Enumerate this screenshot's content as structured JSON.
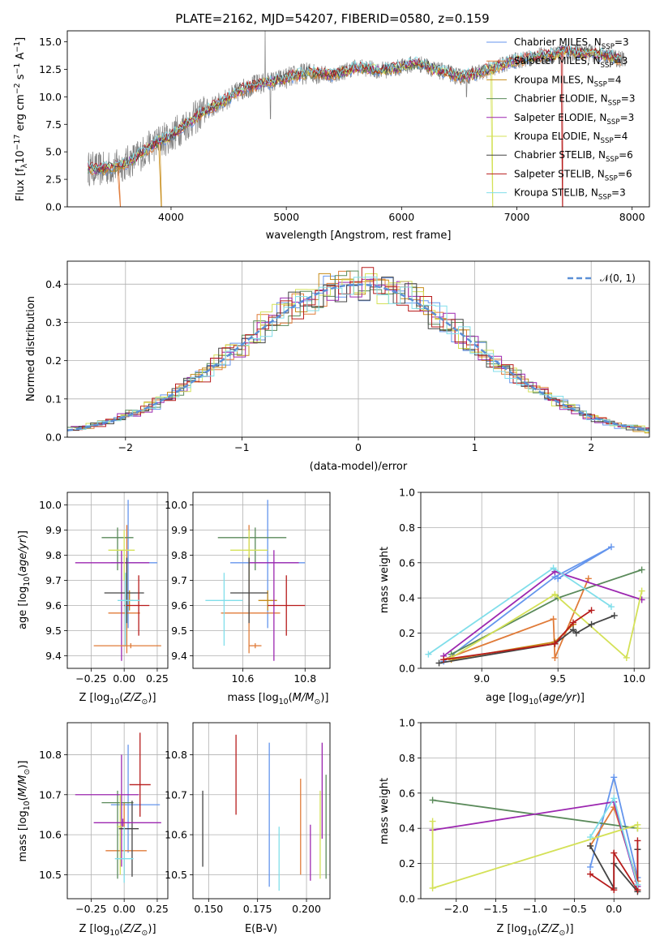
{
  "figure_title": "PLATE=2162, MJD=54207, FIBERID=0580, z=0.159",
  "colors": {
    "Chabrier MILES": "#6495ed",
    "Salpeter MILES": "#e07b39",
    "Kroupa MILES": "#c88d1a",
    "Chabrier ELODIE": "#5a8a5a",
    "Salpeter ELODIE": "#9c27b0",
    "Kroupa ELODIE": "#d4e157",
    "Chabrier STELIB": "#444444",
    "Salpeter STELIB": "#b71c1c",
    "Kroupa STELIB": "#80deea",
    "normal": "#5b8fd6",
    "observed": "#808080"
  },
  "chart_data": [
    {
      "id": "spectrum",
      "type": "line",
      "title": "PLATE=2162, MJD=54207, FIBERID=0580, z=0.159",
      "xlabel": "wavelength [Angstrom, rest frame]",
      "ylabel": "Flux [f_λ10^-17 erg cm^-2 s^-1 A^-1]",
      "xlim": [
        3100,
        8150
      ],
      "ylim": [
        0,
        16
      ],
      "xticks": [
        4000,
        5000,
        6000,
        7000,
        8000
      ],
      "yticks": [
        0.0,
        2.5,
        5.0,
        7.5,
        10.0,
        12.5,
        15.0
      ],
      "continuum": {
        "x": [
          3280,
          3400,
          3500,
          3600,
          3700,
          3800,
          3900,
          4000,
          4100,
          4200,
          4300,
          4400,
          4500,
          4600,
          4700,
          4800,
          4900,
          5000,
          5100,
          5200,
          5300,
          5400,
          5500,
          5600,
          5700,
          5800,
          5900,
          6000,
          6100,
          6200,
          6300,
          6400,
          6500,
          6600,
          6700,
          6800,
          6900,
          7000,
          7100,
          7200,
          7300,
          7400,
          7500,
          7600,
          7700,
          7800,
          7900
        ],
        "y": [
          3.5,
          3.4,
          3.6,
          3.9,
          4.5,
          5.3,
          6.0,
          6.4,
          7.3,
          8.0,
          8.8,
          9.3,
          9.9,
          10.6,
          11.0,
          11.2,
          11.4,
          11.7,
          12.0,
          12.2,
          12.1,
          12.0,
          12.3,
          12.7,
          12.6,
          12.4,
          12.5,
          12.7,
          13.0,
          12.9,
          12.4,
          12.2,
          11.8,
          12.0,
          12.3,
          12.6,
          13.0,
          13.3,
          13.5,
          13.7,
          13.8,
          14.2,
          14.0,
          14.0,
          13.9,
          13.7,
          13.4
        ]
      },
      "legend": [
        "Chabrier MILES, N_SSP=3",
        "Salpeter MILES, N_SSP=3",
        "Kroupa MILES, N_SSP=4",
        "Chabrier ELODIE, N_SSP=3",
        "Salpeter ELODIE, N_SSP=3",
        "Kroupa ELODIE, N_SSP=4",
        "Chabrier STELIB, N_SSP=6",
        "Salpeter STELIB, N_SSP=6",
        "Kroupa STELIB, N_SSP=3"
      ]
    },
    {
      "id": "residuals",
      "type": "histogram",
      "xlabel": "(data-model)/error",
      "ylabel": "Normed distribution",
      "xlim": [
        -2.5,
        2.5
      ],
      "ylim": [
        0,
        0.46
      ],
      "xticks": [
        -2,
        -1,
        0,
        1,
        2
      ],
      "yticks": [
        0.0,
        0.1,
        0.2,
        0.3,
        0.4
      ],
      "legend": [
        "𝒩(0, 1)"
      ],
      "bin_width": 0.1
    },
    {
      "id": "age_vs_Z",
      "type": "errorbar",
      "xlabel": "Z [log10(Z/Z⊙)]",
      "ylabel": "age  [log10(age/yr)]",
      "xlim": [
        -0.43,
        0.33
      ],
      "ylim": [
        9.35,
        10.05
      ],
      "xticks": [
        -0.25,
        0.0,
        0.25
      ],
      "xticklabels": [
        "−0.25",
        "0.00",
        "0.25"
      ],
      "yticks": [
        9.4,
        9.5,
        9.6,
        9.7,
        9.8,
        9.9,
        10.0
      ],
      "points": [
        {
          "series": "Chabrier MILES",
          "x": 0.03,
          "y": 9.77,
          "xerr": [
            0.13,
            0.22
          ],
          "yerr": [
            0.26,
            0.25
          ]
        },
        {
          "series": "Salpeter MILES",
          "x": 0.02,
          "y": 9.57,
          "xerr": [
            0.14,
            0.1
          ],
          "yerr": [
            0.16,
            0.35
          ]
        },
        {
          "series": "Kroupa MILES",
          "x": 0.04,
          "y": 9.62,
          "xerr": [
            0.03,
            0.03
          ],
          "yerr": [
            0.04,
            0.04
          ]
        },
        {
          "series": "Chabrier ELODIE",
          "x": -0.05,
          "y": 9.87,
          "xerr": [
            0.12,
            0.12
          ],
          "yerr": [
            0.13,
            0.04
          ]
        },
        {
          "series": "Salpeter ELODIE",
          "x": -0.02,
          "y": 9.77,
          "xerr": [
            0.35,
            0.21
          ],
          "yerr": [
            0.39,
            0.05
          ]
        },
        {
          "series": "Kroupa ELODIE",
          "x": 0.0,
          "y": 9.82,
          "xerr": [
            0.12,
            0.08
          ],
          "yerr": [
            0.12,
            0.08
          ]
        },
        {
          "series": "Chabrier STELIB",
          "x": 0.02,
          "y": 9.65,
          "xerr": [
            0.17,
            0.13
          ],
          "yerr": [
            0.12,
            0.14
          ]
        },
        {
          "series": "Salpeter STELIB",
          "x": 0.11,
          "y": 9.6,
          "xerr": [
            0.11,
            0.08
          ],
          "yerr": [
            0.12,
            0.12
          ]
        },
        {
          "series": "Kroupa STELIB",
          "x": 0.01,
          "y": 9.62,
          "xerr": [
            0.06,
            0.11
          ],
          "yerr": [
            0.18,
            0.11
          ]
        },
        {
          "series": "Salpeter MILES",
          "x": 0.05,
          "y": 9.44,
          "xerr": [
            0.28,
            0.23
          ],
          "yerr": [
            0.01,
            0.01
          ]
        }
      ]
    },
    {
      "id": "age_vs_mass",
      "type": "errorbar",
      "xlabel": "mass [log10(M/M⊙)]",
      "xlim": [
        10.44,
        10.88
      ],
      "ylim": [
        9.35,
        10.05
      ],
      "xticks": [
        10.6,
        10.8
      ],
      "yticks": [
        9.4,
        9.5,
        9.6,
        9.7,
        9.8,
        9.9,
        10.0
      ],
      "points": [
        {
          "series": "Chabrier MILES",
          "x": 10.68,
          "y": 9.77,
          "xerr": [
            0.12,
            0.12
          ],
          "yerr": [
            0.26,
            0.25
          ]
        },
        {
          "series": "Salpeter MILES",
          "x": 10.62,
          "y": 9.57,
          "xerr": [
            0.09,
            0.1
          ],
          "yerr": [
            0.16,
            0.35
          ]
        },
        {
          "series": "Kroupa MILES",
          "x": 10.68,
          "y": 9.62,
          "xerr": [
            0.03,
            0.03
          ],
          "yerr": [
            0.04,
            0.04
          ]
        },
        {
          "series": "Chabrier ELODIE",
          "x": 10.64,
          "y": 9.87,
          "xerr": [
            0.12,
            0.1
          ],
          "yerr": [
            0.13,
            0.04
          ]
        },
        {
          "series": "Salpeter ELODIE",
          "x": 10.7,
          "y": 9.77,
          "xerr": [
            0.08,
            0.08
          ],
          "yerr": [
            0.39,
            0.05
          ]
        },
        {
          "series": "Kroupa ELODIE",
          "x": 10.62,
          "y": 9.82,
          "xerr": [
            0.06,
            0.06
          ],
          "yerr": [
            0.12,
            0.08
          ]
        },
        {
          "series": "Chabrier STELIB",
          "x": 10.62,
          "y": 9.65,
          "xerr": [
            0.06,
            0.06
          ],
          "yerr": [
            0.12,
            0.14
          ]
        },
        {
          "series": "Salpeter STELIB",
          "x": 10.74,
          "y": 9.6,
          "xerr": [
            0.06,
            0.06
          ],
          "yerr": [
            0.12,
            0.12
          ]
        },
        {
          "series": "Kroupa STELIB",
          "x": 10.54,
          "y": 9.62,
          "xerr": [
            0.06,
            0.06
          ],
          "yerr": [
            0.18,
            0.11
          ]
        },
        {
          "series": "Salpeter MILES",
          "x": 10.64,
          "y": 9.44,
          "xerr": [
            0.02,
            0.02
          ],
          "yerr": [
            0.01,
            0.01
          ]
        }
      ]
    },
    {
      "id": "weight_vs_age",
      "type": "line",
      "xlabel": "age  [log10(age/yr)]",
      "ylabel": "mass weight",
      "xlim": [
        8.6,
        10.1
      ],
      "ylim": [
        0,
        1.0
      ],
      "xticks": [
        9.0,
        9.5,
        10.0
      ],
      "yticks": [
        0.0,
        0.2,
        0.4,
        0.6,
        0.8,
        1.0
      ],
      "series": [
        {
          "name": "Chabrier MILES",
          "x": [
            8.75,
            9.48,
            9.85,
            9.5
          ],
          "y": [
            0.04,
            0.52,
            0.69,
            0.51
          ]
        },
        {
          "name": "Salpeter MILES",
          "x": [
            8.75,
            9.47,
            9.48,
            9.7
          ],
          "y": [
            0.05,
            0.28,
            0.06,
            0.51
          ]
        },
        {
          "name": "Kroupa MILES",
          "x": [
            8.8,
            9.48,
            9.6
          ],
          "y": [
            0.05,
            0.15,
            0.25
          ]
        },
        {
          "name": "Chabrier ELODIE",
          "x": [
            8.8,
            9.5,
            10.05
          ],
          "y": [
            0.08,
            0.4,
            0.56
          ]
        },
        {
          "name": "Salpeter ELODIE",
          "x": [
            8.75,
            9.48,
            10.05
          ],
          "y": [
            0.07,
            0.55,
            0.39
          ]
        },
        {
          "name": "Kroupa ELODIE",
          "x": [
            8.8,
            9.48,
            9.95,
            10.05
          ],
          "y": [
            0.06,
            0.42,
            0.06,
            0.44
          ]
        },
        {
          "name": "Chabrier STELIB",
          "x": [
            8.72,
            9.48,
            9.6,
            9.62,
            9.72,
            9.87
          ],
          "y": [
            0.03,
            0.14,
            0.22,
            0.2,
            0.25,
            0.3
          ]
        },
        {
          "name": "Salpeter STELIB",
          "x": [
            8.75,
            9.48,
            9.6,
            9.72
          ],
          "y": [
            0.05,
            0.14,
            0.26,
            0.33
          ]
        },
        {
          "name": "Kroupa STELIB",
          "x": [
            8.65,
            9.47,
            9.85
          ],
          "y": [
            0.08,
            0.57,
            0.35
          ]
        }
      ]
    },
    {
      "id": "mass_vs_Z",
      "type": "errorbar",
      "xlabel": "Z [log10(Z/Z⊙)]",
      "ylabel": "mass [log10(M/M⊙)]",
      "xlim": [
        -0.43,
        0.33
      ],
      "ylim": [
        10.44,
        10.88
      ],
      "xticks": [
        -0.25,
        0.0,
        0.25
      ],
      "xticklabels": [
        "−0.25",
        "0.00",
        "0.25"
      ],
      "yticks": [
        10.5,
        10.6,
        10.7,
        10.8
      ],
      "points": [
        {
          "series": "Chabrier MILES",
          "x": 0.03,
          "y": 10.675,
          "xerr": [
            0.13,
            0.24
          ],
          "yerr": [
            0.12,
            0.15
          ]
        },
        {
          "series": "Salpeter MILES",
          "x": 0.0,
          "y": 10.56,
          "xerr": [
            0.14,
            0.17
          ],
          "yerr": [
            0.06,
            0.12
          ]
        },
        {
          "series": "Chabrier ELODIE",
          "x": -0.05,
          "y": 10.68,
          "xerr": [
            0.12,
            0.12
          ],
          "yerr": [
            0.19,
            0.03
          ]
        },
        {
          "series": "Salpeter ELODIE",
          "x": -0.02,
          "y": 10.7,
          "xerr": [
            0.35,
            0.13
          ],
          "yerr": [
            0.18,
            0.1
          ]
        },
        {
          "series": "Kroupa ELODIE",
          "x": -0.03,
          "y": 10.62,
          "xerr": [
            0.02,
            0.02
          ],
          "yerr": [
            0.12,
            0.08
          ]
        },
        {
          "series": "Chabrier STELIB",
          "x": 0.06,
          "y": 10.615,
          "xerr": [
            0.1,
            0.05
          ],
          "yerr": [
            0.12,
            0.07
          ]
        },
        {
          "series": "Salpeter STELIB",
          "x": 0.12,
          "y": 10.725,
          "xerr": [
            0.08,
            0.08
          ],
          "yerr": [
            0.08,
            0.13
          ]
        },
        {
          "series": "Kroupa STELIB",
          "x": 0.0,
          "y": 10.54,
          "xerr": [
            0.07,
            0.07
          ],
          "yerr": [
            0.06,
            0.08
          ]
        },
        {
          "series": "Salpeter ELODIE",
          "x": -0.01,
          "y": 10.63,
          "xerr": [
            0.22,
            0.29
          ],
          "yerr": [
            0.01,
            0.01
          ]
        }
      ]
    },
    {
      "id": "mass_vs_ebv",
      "type": "errorbar",
      "xlabel": "E(B-V)",
      "xlim": [
        0.142,
        0.212
      ],
      "ylim": [
        10.44,
        10.88
      ],
      "xticks": [
        0.15,
        0.175,
        0.2
      ],
      "xticklabels": [
        "0.150",
        "0.175",
        "0.200"
      ],
      "yticks": [
        10.5,
        10.6,
        10.7,
        10.8
      ],
      "points": [
        {
          "series": "Chabrier STELIB",
          "x": 0.147,
          "y": 10.61,
          "yerr": [
            0.09,
            0.1
          ]
        },
        {
          "series": "Salpeter STELIB",
          "x": 0.164,
          "y": 10.75,
          "yerr": [
            0.1,
            0.1
          ]
        },
        {
          "series": "Chabrier MILES",
          "x": 0.181,
          "y": 10.65,
          "yerr": [
            0.18,
            0.18
          ]
        },
        {
          "series": "Kroupa STELIB",
          "x": 0.186,
          "y": 10.54,
          "yerr": [
            0.08,
            0.08
          ]
        },
        {
          "series": "Salpeter MILES",
          "x": 0.197,
          "y": 10.62,
          "yerr": [
            0.12,
            0.12
          ]
        },
        {
          "series": "Salpeter ELODIE",
          "x": 0.202,
          "y": 10.555,
          "yerr": [
            0.07,
            0.07
          ]
        },
        {
          "series": "Kroupa ELODIE",
          "x": 0.207,
          "y": 10.6,
          "yerr": [
            0.11,
            0.11
          ]
        },
        {
          "series": "Salpeter ELODIE",
          "x": 0.208,
          "y": 10.71,
          "yerr": [
            0.12,
            0.12
          ]
        },
        {
          "series": "Chabrier ELODIE",
          "x": 0.21,
          "y": 10.62,
          "yerr": [
            0.13,
            0.13
          ]
        }
      ]
    },
    {
      "id": "weight_vs_Z",
      "type": "line",
      "xlabel": "Z [log10(Z/Z⊙)]",
      "ylabel": "mass weight",
      "xlim": [
        -2.45,
        0.45
      ],
      "ylim": [
        0,
        1.0
      ],
      "xticks": [
        -2.0,
        -1.5,
        -1.0,
        -0.5,
        0.0
      ],
      "xticklabels": [
        "−2.0",
        "−1.5",
        "−1.0",
        "−0.5",
        "0.0"
      ],
      "yticks": [
        0.0,
        0.2,
        0.4,
        0.6,
        0.8,
        1.0
      ],
      "series": [
        {
          "name": "Chabrier MILES",
          "x": [
            -0.3,
            0.0,
            0.3
          ],
          "y": [
            0.18,
            0.69,
            0.12
          ]
        },
        {
          "name": "Salpeter MILES",
          "x": [
            -0.3,
            0.0,
            0.3
          ],
          "y": [
            0.3,
            0.52,
            0.1
          ]
        },
        {
          "name": "Chabrier ELODIE",
          "x": [
            -2.3,
            0.3
          ],
          "y": [
            0.56,
            0.4
          ]
        },
        {
          "name": "Salpeter ELODIE",
          "x": [
            -2.3,
            0.0,
            0.3
          ],
          "y": [
            0.39,
            0.55,
            0.07
          ]
        },
        {
          "name": "Kroupa ELODIE",
          "x": [
            -2.3,
            -2.3,
            0.3,
            0.3
          ],
          "y": [
            0.44,
            0.06,
            0.42,
            0.4
          ]
        },
        {
          "name": "Chabrier STELIB",
          "x": [
            -0.3,
            0.0,
            0.0,
            0.3,
            0.3
          ],
          "y": [
            0.3,
            0.06,
            0.2,
            0.04,
            0.28
          ]
        },
        {
          "name": "Salpeter STELIB",
          "x": [
            -0.3,
            0.0,
            0.0,
            0.3,
            0.3
          ],
          "y": [
            0.14,
            0.05,
            0.26,
            0.05,
            0.33
          ]
        },
        {
          "name": "Kroupa STELIB",
          "x": [
            -0.3,
            0.0,
            0.3
          ],
          "y": [
            0.35,
            0.57,
            0.08
          ]
        }
      ]
    }
  ]
}
